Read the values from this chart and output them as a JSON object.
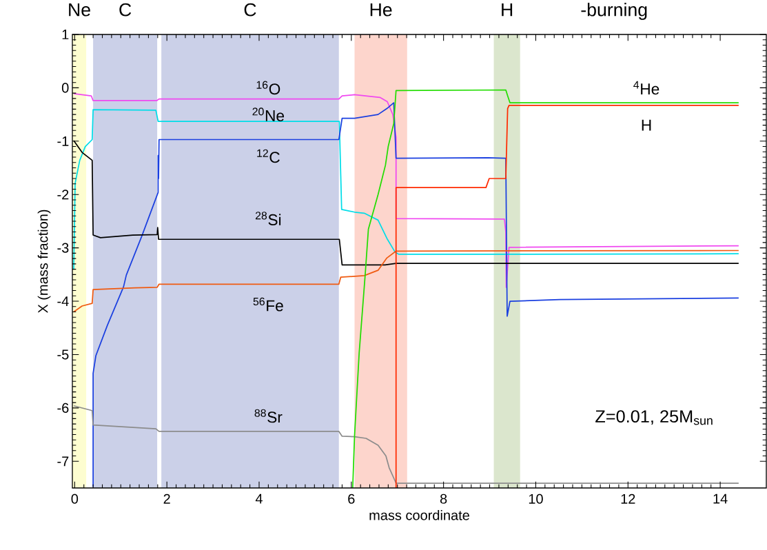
{
  "chart_data": {
    "type": "line",
    "xlabel": "mass coordinate",
    "ylabel": "X (mass fraction)",
    "xlim": [
      -0.05,
      15
    ],
    "ylim": [
      -7.5,
      1
    ],
    "xticks": [
      0,
      2,
      4,
      6,
      8,
      10,
      12,
      14
    ],
    "yticks": [
      -7,
      -6,
      -5,
      -4,
      -3,
      -2,
      -1,
      0,
      1
    ],
    "line_style": "solid",
    "bands": [
      {
        "axis": "x",
        "from": -0.05,
        "to": 0.25,
        "label": "Ne",
        "color": "#fdfdd0"
      },
      {
        "axis": "x",
        "from": 0.4,
        "to": 1.79,
        "label": "C",
        "color": "#cbd0e8"
      },
      {
        "axis": "x",
        "from": 1.88,
        "to": 5.73,
        "label": "C",
        "color": "#cbd0e8"
      },
      {
        "axis": "x",
        "from": 6.07,
        "to": 7.21,
        "label": "He",
        "color": "#fdd5cc"
      },
      {
        "axis": "x",
        "from": 9.09,
        "to": 9.66,
        "label": "H",
        "color": "#dbe6cd"
      }
    ],
    "annotations": [
      "-burning",
      "Z=0.01, 25M$_{sun}$"
    ],
    "series": [
      {
        "name": "$^{16}$O",
        "color": "#f048f0",
        "x": [
          -0.02,
          0.36,
          0.4,
          1.78,
          1.83,
          5.73,
          5.8,
          6.07,
          6.62,
          6.78,
          6.9,
          6.97,
          6.97,
          9.32,
          9.35,
          9.36,
          9.42,
          14.4
        ],
        "values": [
          -0.11,
          -0.15,
          -0.24,
          -0.24,
          -0.21,
          -0.21,
          -0.15,
          -0.13,
          -0.18,
          -0.26,
          -0.5,
          -0.93,
          -2.45,
          -2.46,
          -2.7,
          -3.74,
          -2.99,
          -2.96
        ]
      },
      {
        "name": "$^{20}$Ne",
        "color": "#00dde8",
        "x": [
          -0.02,
          0.01,
          0.11,
          0.23,
          0.38,
          0.4,
          1.76,
          1.81,
          5.74,
          5.79,
          6.07,
          6.28,
          6.58,
          6.77,
          6.95,
          7.03,
          9.36,
          14.4
        ],
        "values": [
          -3.4,
          -1.79,
          -1.36,
          -1.1,
          -0.97,
          -0.41,
          -0.42,
          -0.63,
          -0.63,
          -2.28,
          -2.33,
          -2.35,
          -2.48,
          -2.82,
          -3.08,
          -3.12,
          -3.12,
          -3.11
        ]
      },
      {
        "name": "$^{12}$C",
        "color": "#1a3fe0",
        "x": [
          0.4,
          0.4,
          0.46,
          0.71,
          1.06,
          1.12,
          1.46,
          1.81,
          1.81,
          1.82,
          1.83,
          5.73,
          5.8,
          6.07,
          6.58,
          6.77,
          6.92,
          6.97,
          8.97,
          9.35,
          9.38,
          9.44,
          10.52,
          14.4
        ],
        "values": [
          -7.48,
          -5.35,
          -5.02,
          -4.45,
          -3.73,
          -3.51,
          -2.77,
          -1.96,
          -1.27,
          -1.7,
          -0.97,
          -0.97,
          -0.57,
          -0.57,
          -0.5,
          -0.39,
          -0.28,
          -1.32,
          -1.31,
          -1.32,
          -4.28,
          -4.0,
          -3.97,
          -3.94
        ]
      },
      {
        "name": "$^{28}$Si",
        "color": "#000000",
        "x": [
          -0.02,
          0.16,
          0.38,
          0.4,
          0.56,
          1.26,
          1.79,
          1.8,
          1.82,
          5.74,
          5.8,
          6.73,
          6.97,
          14.4
        ],
        "values": [
          -0.99,
          -1.21,
          -1.36,
          -2.76,
          -2.81,
          -2.76,
          -2.75,
          -2.62,
          -2.84,
          -2.84,
          -3.32,
          -3.32,
          -3.29,
          -3.29
        ]
      },
      {
        "name": "$^{56}$Fe",
        "color": "#f05a10",
        "x": [
          -0.02,
          0.16,
          0.38,
          0.4,
          1.31,
          1.79,
          1.83,
          5.73,
          5.77,
          6.28,
          6.58,
          6.77,
          6.97,
          14.4
        ],
        "values": [
          -4.2,
          -4.09,
          -4.04,
          -3.78,
          -3.75,
          -3.74,
          -3.68,
          -3.68,
          -3.55,
          -3.52,
          -3.42,
          -3.19,
          -3.06,
          -3.05
        ]
      },
      {
        "name": "$^{88}$Sr",
        "color": "#8c8c8c",
        "x": [
          -0.02,
          0.38,
          0.4,
          1.76,
          1.83,
          5.73,
          5.8,
          6.07,
          6.32,
          6.58,
          6.75,
          6.82,
          6.97,
          14.4
        ],
        "values": [
          -5.96,
          -6.05,
          -6.32,
          -6.39,
          -6.44,
          -6.44,
          -6.53,
          -6.54,
          -6.57,
          -6.7,
          -6.9,
          -7.12,
          -7.41,
          -7.41
        ]
      },
      {
        "name": "$^{4}$He",
        "color": "#22dd00",
        "x": [
          6.03,
          6.07,
          6.17,
          6.3,
          6.37,
          6.58,
          6.74,
          6.8,
          6.92,
          6.97,
          9.35,
          9.39,
          9.44,
          14.4
        ],
        "values": [
          -7.5,
          -6.52,
          -4.97,
          -3.51,
          -2.65,
          -2.0,
          -1.45,
          -1.1,
          -0.67,
          -0.05,
          -0.04,
          -0.15,
          -0.28,
          -0.28
        ]
      },
      {
        "name": "H",
        "color": "#ff2a00",
        "x": [
          6.97,
          6.97,
          8.92,
          8.99,
          9.35,
          9.39,
          9.42,
          14.4
        ],
        "values": [
          -7.5,
          -1.87,
          -1.87,
          -1.7,
          -1.7,
          -0.39,
          -0.33,
          -0.33
        ]
      }
    ]
  }
}
